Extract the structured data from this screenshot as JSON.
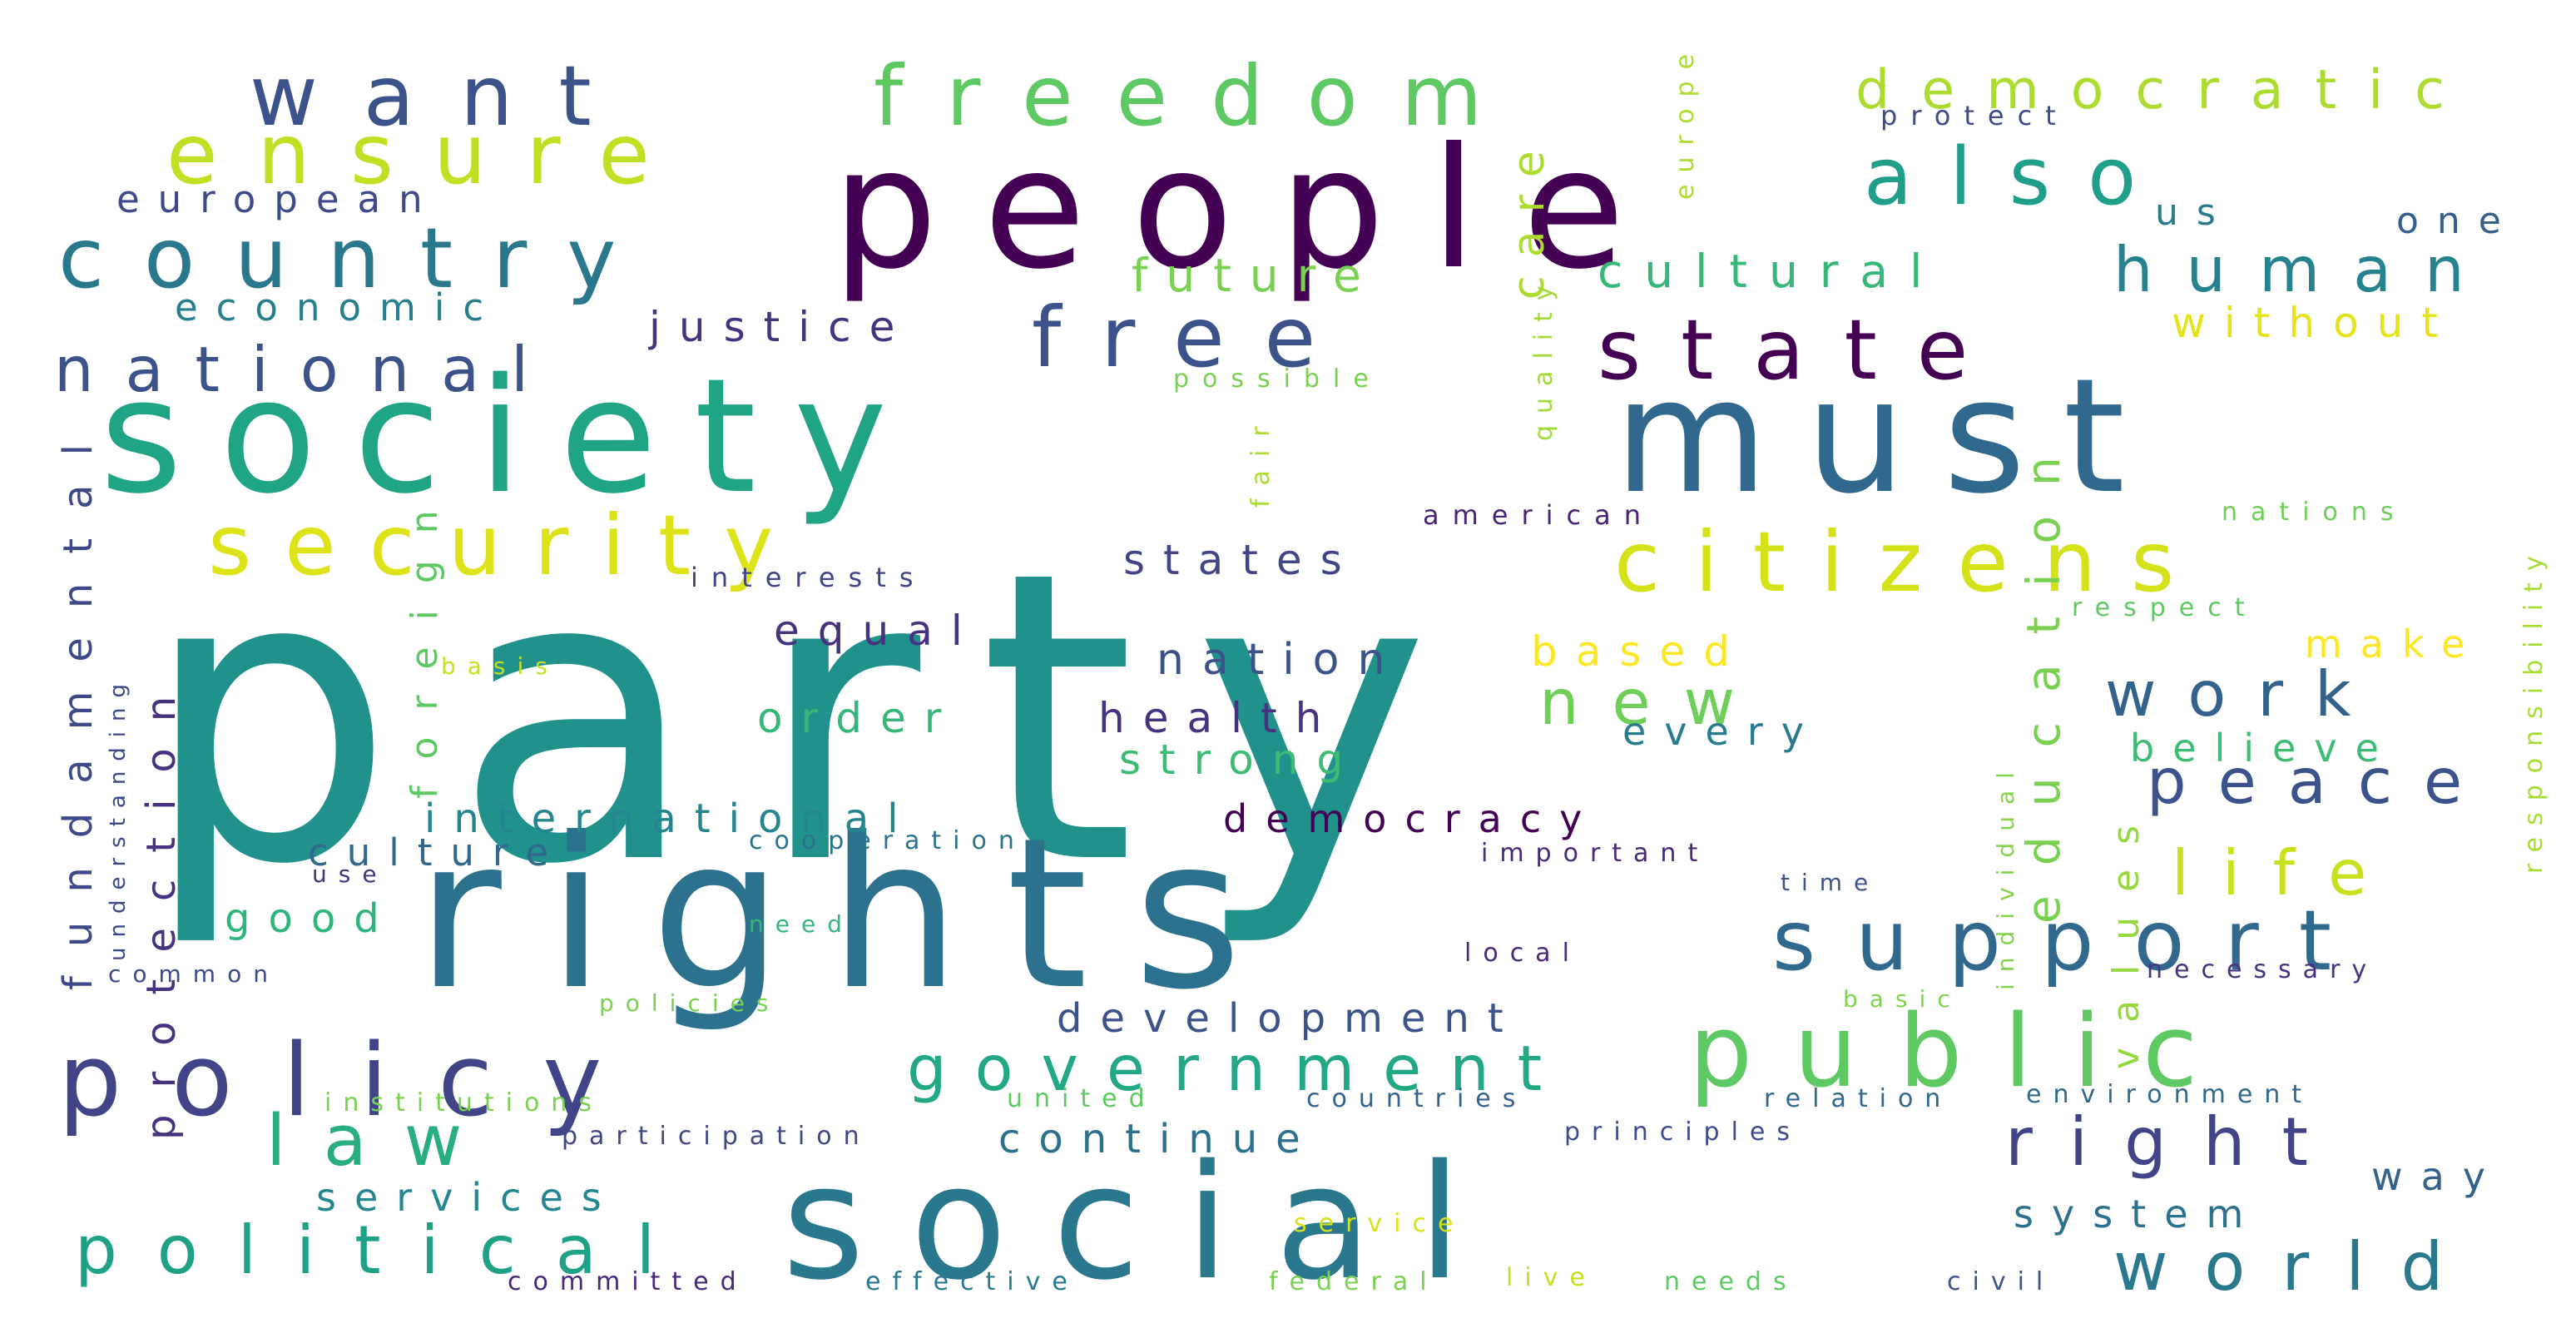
{
  "words": [
    {
      "text": "party",
      "color": "#21918c"
    },
    {
      "text": "rights",
      "color": "#2c728e"
    },
    {
      "text": "society",
      "color": "#20a486"
    },
    {
      "text": "must",
      "color": "#31688e"
    },
    {
      "text": "people",
      "color": "#440154"
    },
    {
      "text": "social",
      "color": "#2a788e"
    },
    {
      "text": "public",
      "color": "#5ec962"
    },
    {
      "text": "policy",
      "color": "#414487"
    },
    {
      "text": "security",
      "color": "#dde318"
    },
    {
      "text": "citizens",
      "color": "#d5e21a"
    },
    {
      "text": "country",
      "color": "#2a788e"
    },
    {
      "text": "state",
      "color": "#440154"
    },
    {
      "text": "support",
      "color": "#31688e"
    },
    {
      "text": "free",
      "color": "#3b528b"
    },
    {
      "text": "freedom",
      "color": "#5ec962"
    },
    {
      "text": "ensure",
      "color": "#c2df23"
    },
    {
      "text": "want",
      "color": "#3b528b"
    },
    {
      "text": "also",
      "color": "#1f9e89"
    },
    {
      "text": "national",
      "color": "#3b528b"
    },
    {
      "text": "human",
      "color": "#26828e"
    },
    {
      "text": "democratic",
      "color": "#addc30"
    },
    {
      "text": "government",
      "color": "#22a884"
    },
    {
      "text": "law",
      "color": "#29af7f"
    },
    {
      "text": "political",
      "color": "#1fa187"
    },
    {
      "text": "right",
      "color": "#414487"
    },
    {
      "text": "world",
      "color": "#2a788e"
    },
    {
      "text": "life",
      "color": "#c8e020"
    },
    {
      "text": "peace",
      "color": "#3b528b"
    },
    {
      "text": "work",
      "color": "#33638d"
    },
    {
      "text": "new",
      "color": "#6ece58"
    },
    {
      "text": "fundamental",
      "color": "#3e4989"
    },
    {
      "text": "protection",
      "color": "#46327e"
    },
    {
      "text": "foreign",
      "color": "#5ec962"
    },
    {
      "text": "education",
      "color": "#7ad151"
    },
    {
      "text": "values",
      "color": "#95d840"
    },
    {
      "text": "cultural",
      "color": "#37b878"
    },
    {
      "text": "future",
      "color": "#7ad151"
    },
    {
      "text": "without",
      "color": "#e5e419"
    },
    {
      "text": "justice",
      "color": "#46337e"
    },
    {
      "text": "european",
      "color": "#3e4a89"
    },
    {
      "text": "economic",
      "color": "#277f8e"
    },
    {
      "text": "care",
      "color": "#addc30"
    },
    {
      "text": "states",
      "color": "#404688"
    },
    {
      "text": "nation",
      "color": "#3b528b"
    },
    {
      "text": "health",
      "color": "#46327e"
    },
    {
      "text": "equal",
      "color": "#46327e"
    },
    {
      "text": "order",
      "color": "#35b779"
    },
    {
      "text": "strong",
      "color": "#3fbc73"
    },
    {
      "text": "based",
      "color": "#fde725"
    },
    {
      "text": "every",
      "color": "#287c8e"
    },
    {
      "text": "international",
      "color": "#25858e"
    },
    {
      "text": "democracy",
      "color": "#440154"
    },
    {
      "text": "culture",
      "color": "#31688e"
    },
    {
      "text": "good",
      "color": "#2fb47c"
    },
    {
      "text": "development",
      "color": "#3b528b"
    },
    {
      "text": "continue",
      "color": "#2d708e"
    },
    {
      "text": "services",
      "color": "#24868e"
    },
    {
      "text": "believe",
      "color": "#3fbc73"
    },
    {
      "text": "make",
      "color": "#fde725"
    },
    {
      "text": "system",
      "color": "#2c728e"
    },
    {
      "text": "way",
      "color": "#33638d"
    },
    {
      "text": "us",
      "color": "#287c8e"
    },
    {
      "text": "one",
      "color": "#355f8d"
    },
    {
      "text": "europe",
      "color": "#addc30"
    },
    {
      "text": "quality",
      "color": "#a2da37"
    },
    {
      "text": "protect",
      "color": "#3e4a89"
    },
    {
      "text": "possible",
      "color": "#7ad151"
    },
    {
      "text": "fair",
      "color": "#addc30"
    },
    {
      "text": "american",
      "color": "#482475"
    },
    {
      "text": "interests",
      "color": "#414487"
    },
    {
      "text": "nations",
      "color": "#6ece58"
    },
    {
      "text": "respect",
      "color": "#5ec962"
    },
    {
      "text": "responsibility",
      "color": "#a8db34"
    },
    {
      "text": "individual",
      "color": "#84d44b"
    },
    {
      "text": "understanding",
      "color": "#3e4989"
    },
    {
      "text": "basis",
      "color": "#c8e020"
    },
    {
      "text": "use",
      "color": "#46327e"
    },
    {
      "text": "cooperation",
      "color": "#2c728e"
    },
    {
      "text": "important",
      "color": "#482878"
    },
    {
      "text": "time",
      "color": "#3b528b"
    },
    {
      "text": "need",
      "color": "#35b779"
    },
    {
      "text": "common",
      "color": "#3e4989"
    },
    {
      "text": "local",
      "color": "#482878"
    },
    {
      "text": "necessary",
      "color": "#46327e"
    },
    {
      "text": "policies",
      "color": "#7ad151"
    },
    {
      "text": "basic",
      "color": "#7fd34e"
    },
    {
      "text": "institutions",
      "color": "#7ad151"
    },
    {
      "text": "united",
      "color": "#5ec962"
    },
    {
      "text": "countries",
      "color": "#33638d"
    },
    {
      "text": "relation",
      "color": "#31688e"
    },
    {
      "text": "environment",
      "color": "#31688e"
    },
    {
      "text": "participation",
      "color": "#404688"
    },
    {
      "text": "principles",
      "color": "#3e4a89"
    },
    {
      "text": "service",
      "color": "#d8e219"
    },
    {
      "text": "committed",
      "color": "#482878"
    },
    {
      "text": "effective",
      "color": "#2a788e"
    },
    {
      "text": "federal",
      "color": "#7ad151"
    },
    {
      "text": "live",
      "color": "#c8e020"
    },
    {
      "text": "needs",
      "color": "#5ec962"
    },
    {
      "text": "civil",
      "color": "#3b528b"
    }
  ]
}
